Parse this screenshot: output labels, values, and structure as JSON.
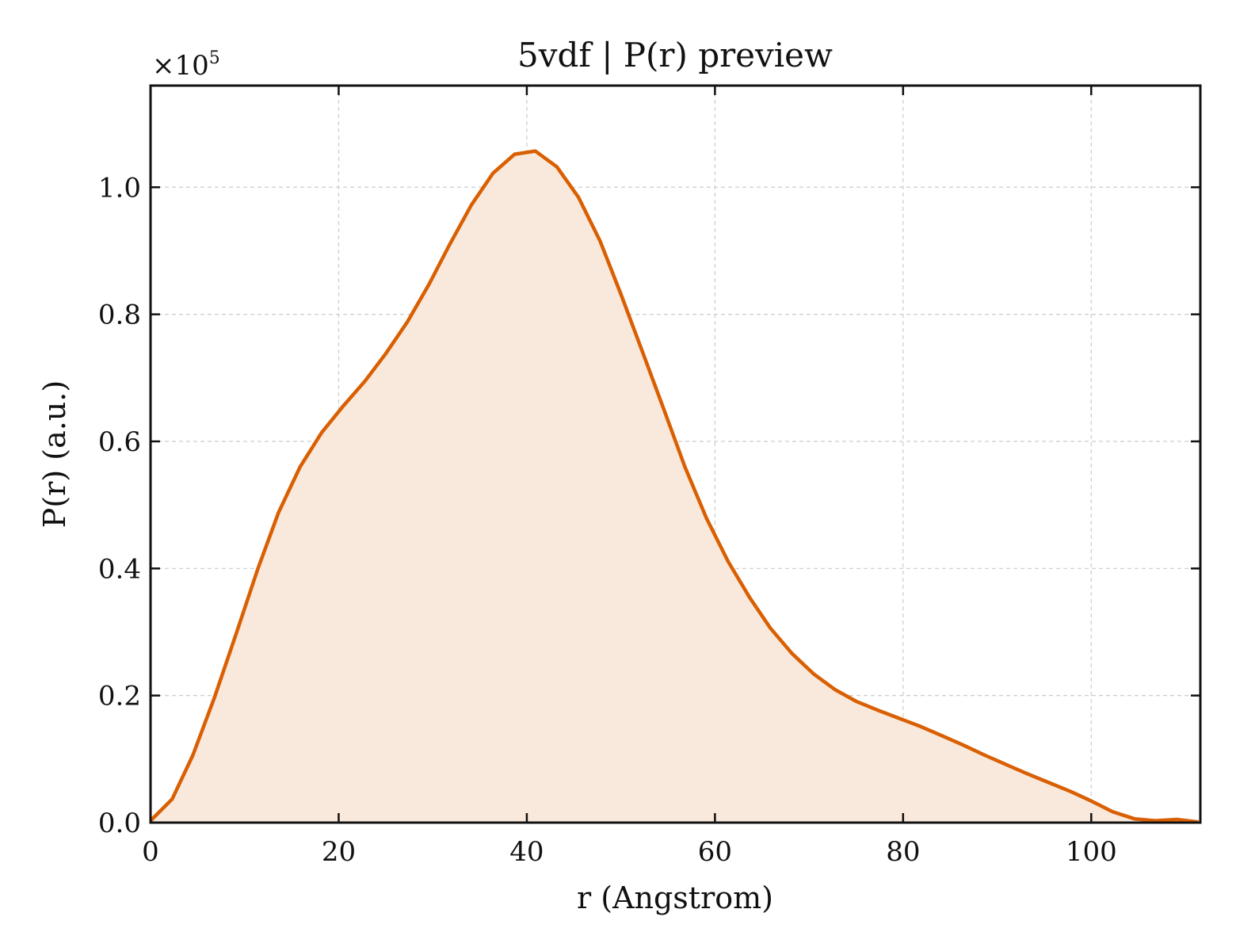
{
  "chart_data": {
    "type": "area",
    "title": "5vdf | P(r) preview",
    "xlabel": "r (Angstrom)",
    "ylabel": "P(r) (a.u.)",
    "y_multiplier_base": "×10",
    "y_multiplier_exp": "5",
    "xlim": [
      0,
      111.6
    ],
    "ylim": [
      0,
      1.16
    ],
    "x_ticks": [
      0,
      20,
      40,
      60,
      80,
      100
    ],
    "x_tick_labels": [
      "0",
      "20",
      "40",
      "60",
      "80",
      "100"
    ],
    "y_ticks": [
      0.0,
      0.2,
      0.4,
      0.6,
      0.8,
      1.0
    ],
    "y_tick_labels": [
      "0.0",
      "0.2",
      "0.4",
      "0.6",
      "0.8",
      "1.0"
    ],
    "grid": true,
    "colors": {
      "line": "#d95f02",
      "fill": "#f9e9dc"
    },
    "series": [
      {
        "x": [
          0,
          2.3,
          4.5,
          6.8,
          9.1,
          11.4,
          13.6,
          15.9,
          18.2,
          20.5,
          22.8,
          25.0,
          27.3,
          29.6,
          31.8,
          34.1,
          36.4,
          38.7,
          40.9,
          43.2,
          45.5,
          47.8,
          50.0,
          52.3,
          54.6,
          56.8,
          59.1,
          61.4,
          63.7,
          65.9,
          68.2,
          70.5,
          72.8,
          75.0,
          77.3,
          79.6,
          81.9,
          84.1,
          86.4,
          88.7,
          91.0,
          93.2,
          95.5,
          97.8,
          100.0,
          102.3,
          104.6,
          106.8,
          109.1,
          111.4
        ],
        "y": [
          0.003,
          0.037,
          0.106,
          0.197,
          0.297,
          0.399,
          0.488,
          0.56,
          0.614,
          0.656,
          0.695,
          0.738,
          0.788,
          0.847,
          0.91,
          0.972,
          1.022,
          1.052,
          1.057,
          1.032,
          0.984,
          0.915,
          0.832,
          0.741,
          0.649,
          0.56,
          0.479,
          0.411,
          0.354,
          0.306,
          0.266,
          0.234,
          0.209,
          0.191,
          0.177,
          0.164,
          0.151,
          0.137,
          0.122,
          0.106,
          0.091,
          0.077,
          0.063,
          0.049,
          0.034,
          0.017,
          0.006,
          0.003,
          0.005,
          0.001
        ]
      }
    ]
  }
}
